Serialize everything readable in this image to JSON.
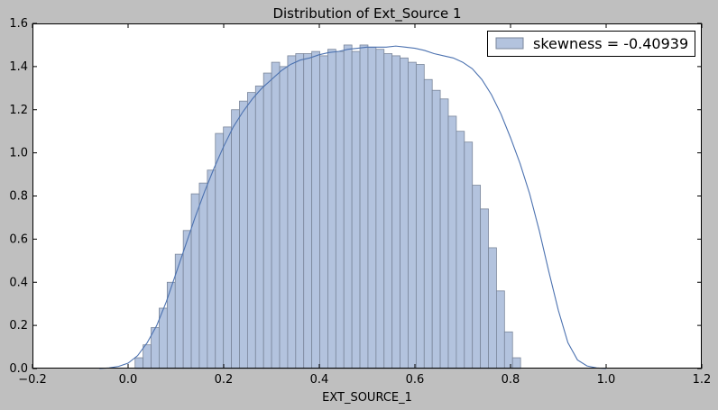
{
  "chart_data": {
    "type": "bar",
    "title": "Distribution of Ext_Source 1",
    "xlabel": "EXT_SOURCE_1",
    "ylabel": "",
    "xlim": [
      -0.2,
      1.2
    ],
    "ylim": [
      0.0,
      1.6
    ],
    "xticks": [
      -0.2,
      0.0,
      0.2,
      0.4,
      0.6,
      0.8,
      1.0,
      1.2
    ],
    "xtick_labels": [
      "−0.2",
      "0.0",
      "0.2",
      "0.4",
      "0.6",
      "0.8",
      "1.0",
      "1.2"
    ],
    "yticks": [
      0.0,
      0.2,
      0.4,
      0.6,
      0.8,
      1.0,
      1.2,
      1.4,
      1.6
    ],
    "ytick_labels": [
      "0.0",
      "0.2",
      "0.4",
      "0.6",
      "0.8",
      "1.0",
      "1.2",
      "1.4",
      "1.6"
    ],
    "grid": false,
    "legend_position": "top-right",
    "legend_label": "skewness = -0.40939",
    "bar_color": "#b3c3de",
    "bar_edge_color": "#7a869a",
    "kde_color": "#4c72b0",
    "histogram": {
      "bin_start": 0.0146,
      "bin_width": 0.0168,
      "values": [
        0.05,
        0.11,
        0.19,
        0.28,
        0.4,
        0.53,
        0.64,
        0.81,
        0.86,
        0.92,
        1.09,
        1.12,
        1.2,
        1.24,
        1.28,
        1.31,
        1.37,
        1.42,
        1.4,
        1.45,
        1.46,
        1.46,
        1.47,
        1.45,
        1.48,
        1.47,
        1.5,
        1.47,
        1.5,
        1.49,
        1.48,
        1.46,
        1.45,
        1.44,
        1.42,
        1.41,
        1.34,
        1.29,
        1.25,
        1.17,
        1.1,
        1.05,
        0.85,
        0.74,
        0.56,
        0.36,
        0.17,
        0.05
      ]
    },
    "kde": {
      "x": [
        -0.06,
        -0.04,
        -0.02,
        0.0,
        0.02,
        0.04,
        0.06,
        0.08,
        0.1,
        0.12,
        0.14,
        0.16,
        0.18,
        0.2,
        0.22,
        0.24,
        0.26,
        0.28,
        0.3,
        0.32,
        0.34,
        0.36,
        0.38,
        0.4,
        0.42,
        0.44,
        0.46,
        0.48,
        0.5,
        0.52,
        0.54,
        0.56,
        0.58,
        0.6,
        0.62,
        0.64,
        0.66,
        0.68,
        0.7,
        0.72,
        0.74,
        0.76,
        0.78,
        0.8,
        0.82,
        0.84,
        0.86,
        0.88,
        0.9,
        0.92,
        0.94,
        0.96,
        0.98,
        1.0
      ],
      "y": [
        0.0,
        0.003,
        0.01,
        0.025,
        0.06,
        0.12,
        0.2,
        0.31,
        0.44,
        0.57,
        0.7,
        0.82,
        0.93,
        1.03,
        1.12,
        1.19,
        1.25,
        1.3,
        1.34,
        1.38,
        1.41,
        1.43,
        1.44,
        1.455,
        1.465,
        1.47,
        1.48,
        1.485,
        1.49,
        1.49,
        1.49,
        1.495,
        1.49,
        1.485,
        1.475,
        1.46,
        1.45,
        1.44,
        1.42,
        1.39,
        1.34,
        1.27,
        1.18,
        1.07,
        0.95,
        0.81,
        0.64,
        0.45,
        0.27,
        0.12,
        0.04,
        0.012,
        0.003,
        0.0
      ]
    }
  }
}
